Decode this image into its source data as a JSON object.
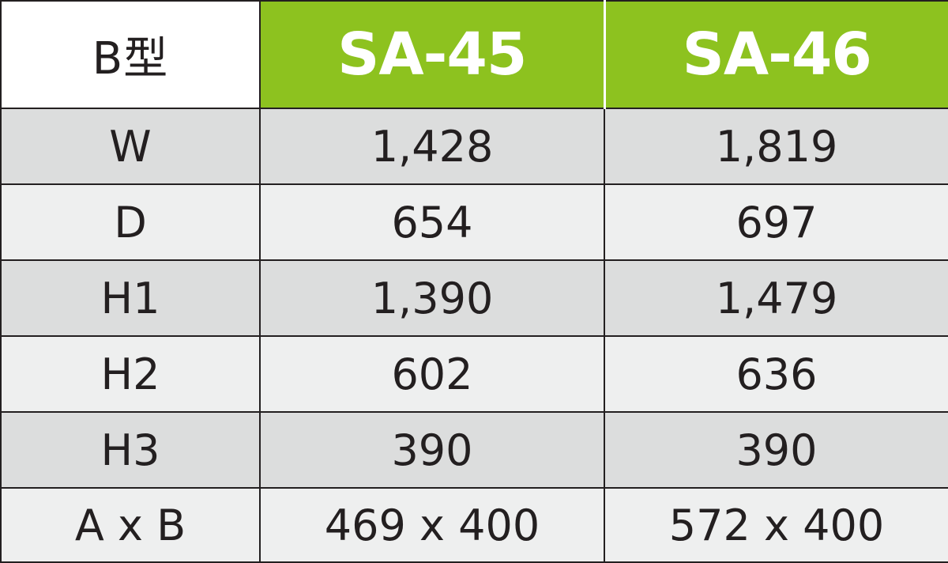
{
  "table": {
    "type_label": "B型",
    "models": [
      "SA-45",
      "SA-46"
    ],
    "rows": [
      {
        "label": "W",
        "values": [
          "1,428",
          "1,819"
        ]
      },
      {
        "label": "D",
        "values": [
          "654",
          "697"
        ]
      },
      {
        "label": "H1",
        "values": [
          "1,390",
          "1,479"
        ]
      },
      {
        "label": "H2",
        "values": [
          "602",
          "636"
        ]
      },
      {
        "label": "H3",
        "values": [
          "390",
          "390"
        ]
      },
      {
        "label": "A x B",
        "values": [
          "469 x 400",
          "572 x 400"
        ]
      }
    ]
  },
  "colors": {
    "header_green": "#8dc21f",
    "row_dark": "#dcdddd",
    "row_light": "#eeefef",
    "text": "#231f20"
  }
}
